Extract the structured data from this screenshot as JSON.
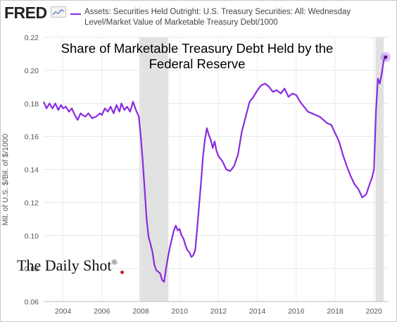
{
  "brand": {
    "logo_text": "FRED",
    "logo_icon": "chart-line-icon"
  },
  "legend": {
    "label": "Assets: Securities Held Outright: U.S. Treasury Securities: All: Wednesday Level/Market Value of Marketable Treasury Debt/1000",
    "color": "#8a2be2"
  },
  "watermark": {
    "text": "The Daily Shot",
    "mark": "®"
  },
  "chart_data": {
    "type": "line",
    "title": "Share of Marketable Treasury Debt Held by the Federal Reserve",
    "ylabel": "Mil. of U.S. $/Bil. of $/1000",
    "xlabel": "",
    "xlim": [
      2003.0,
      2020.75
    ],
    "ylim": [
      0.06,
      0.22
    ],
    "x_ticks": [
      "2004",
      "2006",
      "2008",
      "2010",
      "2012",
      "2014",
      "2016",
      "2018",
      "2020"
    ],
    "y_ticks": [
      "0.06",
      "0.08",
      "0.10",
      "0.12",
      "0.14",
      "0.16",
      "0.18",
      "0.20",
      "0.22"
    ],
    "grid": true,
    "recessions": [
      [
        2007.92,
        2009.42
      ],
      [
        2020.08,
        2020.5
      ]
    ],
    "series": [
      {
        "name": "Assets: Securities Held Outright: U.S. Treasury Securities: All: Wednesday Level/Market Value of Marketable Treasury Debt/1000",
        "color": "#8a2be2",
        "x": [
          2003.0,
          2003.15,
          2003.3,
          2003.45,
          2003.6,
          2003.75,
          2003.9,
          2004.0,
          2004.15,
          2004.3,
          2004.45,
          2004.6,
          2004.75,
          2004.9,
          2005.0,
          2005.15,
          2005.3,
          2005.5,
          2005.7,
          2005.9,
          2006.0,
          2006.15,
          2006.3,
          2006.45,
          2006.6,
          2006.75,
          2006.9,
          2007.0,
          2007.15,
          2007.3,
          2007.45,
          2007.6,
          2007.75,
          2007.9,
          2008.0,
          2008.1,
          2008.2,
          2008.3,
          2008.4,
          2008.5,
          2008.6,
          2008.7,
          2008.8,
          2008.9,
          2009.0,
          2009.1,
          2009.2,
          2009.3,
          2009.4,
          2009.5,
          2009.6,
          2009.7,
          2009.8,
          2009.9,
          2010.0,
          2010.1,
          2010.2,
          2010.3,
          2010.4,
          2010.5,
          2010.6,
          2010.7,
          2010.8,
          2010.9,
          2011.0,
          2011.1,
          2011.2,
          2011.3,
          2011.4,
          2011.5,
          2011.6,
          2011.7,
          2011.8,
          2011.9,
          2012.0,
          2012.2,
          2012.4,
          2012.6,
          2012.8,
          2013.0,
          2013.2,
          2013.4,
          2013.6,
          2013.8,
          2014.0,
          2014.2,
          2014.4,
          2014.6,
          2014.8,
          2015.0,
          2015.2,
          2015.4,
          2015.6,
          2015.8,
          2016.0,
          2016.2,
          2016.4,
          2016.6,
          2016.8,
          2017.0,
          2017.2,
          2017.4,
          2017.6,
          2017.8,
          2018.0,
          2018.2,
          2018.4,
          2018.6,
          2018.8,
          2019.0,
          2019.2,
          2019.4,
          2019.6,
          2019.8,
          2019.9,
          2020.0,
          2020.1,
          2020.2,
          2020.3,
          2020.4,
          2020.5,
          2020.6
        ],
        "y": [
          0.181,
          0.177,
          0.18,
          0.177,
          0.18,
          0.176,
          0.179,
          0.177,
          0.178,
          0.175,
          0.177,
          0.173,
          0.17,
          0.174,
          0.173,
          0.172,
          0.174,
          0.171,
          0.172,
          0.174,
          0.173,
          0.177,
          0.175,
          0.178,
          0.174,
          0.179,
          0.175,
          0.18,
          0.176,
          0.178,
          0.175,
          0.181,
          0.176,
          0.172,
          0.16,
          0.145,
          0.128,
          0.11,
          0.099,
          0.095,
          0.09,
          0.082,
          0.079,
          0.078,
          0.077,
          0.073,
          0.072,
          0.08,
          0.087,
          0.093,
          0.098,
          0.103,
          0.106,
          0.103,
          0.104,
          0.1,
          0.098,
          0.094,
          0.091,
          0.09,
          0.087,
          0.088,
          0.091,
          0.104,
          0.118,
          0.132,
          0.148,
          0.158,
          0.165,
          0.161,
          0.158,
          0.153,
          0.157,
          0.151,
          0.148,
          0.145,
          0.14,
          0.139,
          0.142,
          0.149,
          0.163,
          0.172,
          0.181,
          0.184,
          0.188,
          0.191,
          0.192,
          0.19,
          0.187,
          0.188,
          0.186,
          0.189,
          0.184,
          0.186,
          0.185,
          0.181,
          0.178,
          0.175,
          0.174,
          0.173,
          0.172,
          0.17,
          0.168,
          0.167,
          0.162,
          0.157,
          0.149,
          0.142,
          0.136,
          0.131,
          0.128,
          0.123,
          0.125,
          0.132,
          0.135,
          0.14,
          0.175,
          0.195,
          0.192,
          0.198,
          0.206,
          0.208
        ]
      }
    ]
  }
}
